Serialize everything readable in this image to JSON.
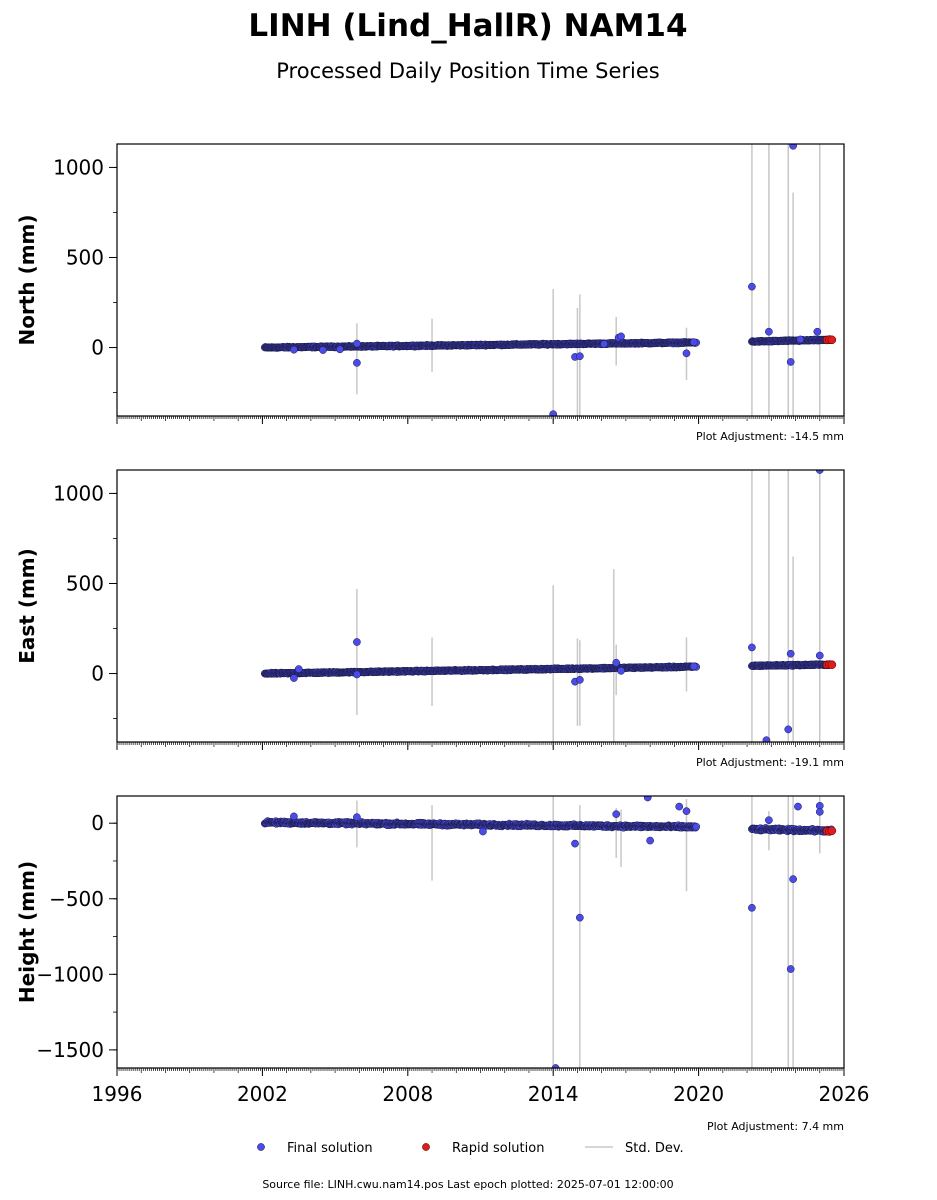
{
  "title": "LINH (Lind_HallR) NAM14",
  "subtitle": "Processed Daily Position Time Series",
  "source_note": "Source file: LINH.cwu.nam14.pos  Last epoch plotted: 2025-07-01 12:00:00",
  "legend": {
    "final": "Final solution",
    "rapid": "Rapid solution",
    "std": "Std. Dev."
  },
  "colors": {
    "final": "#4b4bea",
    "rapid": "#e11c1c",
    "std": "#c8c8c8",
    "marker_edge": "#1a1a40"
  },
  "chart_data": [
    {
      "type": "scatter",
      "ylabel": "North (mm)",
      "adjustment": "Plot Adjustment: -14.5 mm",
      "xlim": [
        1996,
        2026
      ],
      "ylim": [
        -380,
        1130
      ],
      "yticks": [
        0,
        500,
        1000
      ],
      "ytick_labels": [
        "0",
        "500",
        "1000"
      ],
      "xticks": [
        1996,
        2002,
        2008,
        2014,
        2020,
        2026
      ],
      "show_xtick_labels": false,
      "segments": [
        {
          "x0": 2002.1,
          "x1": 2019.9,
          "y0": 0,
          "y1": 28,
          "noise": 5
        },
        {
          "x0": 2022.2,
          "x1": 2025.5,
          "y0": 33,
          "y1": 43,
          "noise": 5
        }
      ],
      "outliers": [
        [
          2003.3,
          -12
        ],
        [
          2004.5,
          -14
        ],
        [
          2005.2,
          -10
        ],
        [
          2005.9,
          -85
        ],
        [
          2005.9,
          22
        ],
        [
          2014.9,
          -52
        ],
        [
          2015.1,
          -48
        ],
        [
          2016.1,
          20
        ],
        [
          2016.7,
          55
        ],
        [
          2016.8,
          62
        ],
        [
          2019.5,
          -32
        ],
        [
          2019.8,
          30
        ],
        [
          2022.2,
          338
        ],
        [
          2022.9,
          88
        ],
        [
          2023.8,
          -80
        ],
        [
          2023.9,
          1120
        ],
        [
          2024.2,
          45
        ],
        [
          2024.9,
          88
        ],
        [
          2014.0,
          -370
        ]
      ],
      "rapid": [
        [
          2025.3,
          42
        ],
        [
          2025.4,
          44
        ],
        [
          2025.5,
          43
        ]
      ],
      "std_dev": [
        [
          2005.9,
          -260,
          135
        ],
        [
          2009.0,
          -135,
          160
        ],
        [
          2014.0,
          -380,
          325
        ],
        [
          2015.0,
          -380,
          220
        ],
        [
          2015.1,
          -390,
          295
        ],
        [
          2016.6,
          -100,
          170
        ],
        [
          2019.5,
          -180,
          110
        ],
        [
          2022.2,
          -380,
          1130
        ],
        [
          2022.9,
          -380,
          1130
        ],
        [
          2023.7,
          -380,
          1130
        ],
        [
          2023.9,
          -380,
          860
        ],
        [
          2025.0,
          -380,
          1130
        ]
      ]
    },
    {
      "type": "scatter",
      "ylabel": "East (mm)",
      "adjustment": "Plot Adjustment: -19.1 mm",
      "xlim": [
        1996,
        2026
      ],
      "ylim": [
        -380,
        1130
      ],
      "yticks": [
        0,
        500,
        1000
      ],
      "ytick_labels": [
        "0",
        "500",
        "1000"
      ],
      "xticks": [
        1996,
        2002,
        2008,
        2014,
        2020,
        2026
      ],
      "show_xtick_labels": false,
      "segments": [
        {
          "x0": 2002.1,
          "x1": 2019.9,
          "y0": 0,
          "y1": 38,
          "noise": 5
        },
        {
          "x0": 2022.2,
          "x1": 2025.5,
          "y0": 43,
          "y1": 50,
          "noise": 5
        }
      ],
      "outliers": [
        [
          2003.3,
          -25
        ],
        [
          2003.5,
          25
        ],
        [
          2005.9,
          175
        ],
        [
          2005.9,
          -5
        ],
        [
          2014.9,
          -45
        ],
        [
          2015.1,
          -35
        ],
        [
          2016.6,
          60
        ],
        [
          2016.8,
          15
        ],
        [
          2019.8,
          40
        ],
        [
          2022.2,
          145
        ],
        [
          2022.8,
          -370
        ],
        [
          2023.7,
          -310
        ],
        [
          2023.8,
          110
        ],
        [
          2025.0,
          1130
        ],
        [
          2025.0,
          100
        ]
      ],
      "rapid": [
        [
          2025.3,
          48
        ],
        [
          2025.4,
          50
        ],
        [
          2025.5,
          49
        ]
      ],
      "std_dev": [
        [
          2005.9,
          -230,
          470
        ],
        [
          2009.0,
          -180,
          200
        ],
        [
          2014.0,
          -380,
          490
        ],
        [
          2015.0,
          -290,
          195
        ],
        [
          2015.1,
          -290,
          185
        ],
        [
          2016.5,
          -380,
          580
        ],
        [
          2016.6,
          -120,
          160
        ],
        [
          2019.5,
          -100,
          200
        ],
        [
          2022.2,
          -380,
          1130
        ],
        [
          2022.9,
          -380,
          1130
        ],
        [
          2023.7,
          -380,
          1130
        ],
        [
          2023.9,
          -380,
          650
        ],
        [
          2025.0,
          -380,
          1130
        ]
      ]
    },
    {
      "type": "scatter",
      "ylabel": "Height (mm)",
      "adjustment": "Plot Adjustment: 7.4 mm",
      "xlim": [
        1996,
        2026
      ],
      "ylim": [
        -1620,
        180
      ],
      "yticks": [
        0,
        -500,
        -1000,
        -1500
      ],
      "ytick_labels": [
        "0",
        "−500",
        "−1000",
        "−1500"
      ],
      "xticks": [
        1996,
        2002,
        2008,
        2014,
        2020,
        2026
      ],
      "xtick_labels": [
        "1996",
        "2002",
        "2008",
        "2014",
        "2020",
        "2026"
      ],
      "show_xtick_labels": true,
      "segments": [
        {
          "x0": 2002.1,
          "x1": 2019.9,
          "y0": 5,
          "y1": -25,
          "noise": 12
        },
        {
          "x0": 2022.2,
          "x1": 2025.5,
          "y0": -40,
          "y1": -50,
          "noise": 12
        }
      ],
      "outliers": [
        [
          2003.3,
          45
        ],
        [
          2005.9,
          40
        ],
        [
          2011.1,
          -55
        ],
        [
          2014.1,
          -1620
        ],
        [
          2014.9,
          -135
        ],
        [
          2015.1,
          -625
        ],
        [
          2016.6,
          60
        ],
        [
          2017.9,
          170
        ],
        [
          2018.0,
          -115
        ],
        [
          2019.2,
          110
        ],
        [
          2019.5,
          80
        ],
        [
          2022.2,
          -560
        ],
        [
          2022.9,
          20
        ],
        [
          2023.8,
          -965
        ],
        [
          2023.9,
          -370
        ],
        [
          2024.1,
          110
        ],
        [
          2025.0,
          115
        ],
        [
          2025.0,
          75
        ]
      ],
      "rapid": [
        [
          2025.3,
          -52
        ],
        [
          2025.4,
          -55
        ],
        [
          2025.5,
          -50
        ]
      ],
      "std_dev": [
        [
          2005.9,
          -160,
          150
        ],
        [
          2009.0,
          -380,
          120
        ],
        [
          2014.0,
          -1620,
          180
        ],
        [
          2015.1,
          -1620,
          120
        ],
        [
          2016.6,
          -230,
          100
        ],
        [
          2016.8,
          -290,
          90
        ],
        [
          2019.5,
          -450,
          160
        ],
        [
          2022.2,
          -1620,
          180
        ],
        [
          2022.9,
          -180,
          80
        ],
        [
          2023.7,
          -1620,
          180
        ],
        [
          2023.9,
          -1620,
          180
        ],
        [
          2025.0,
          -200,
          180
        ]
      ]
    }
  ]
}
